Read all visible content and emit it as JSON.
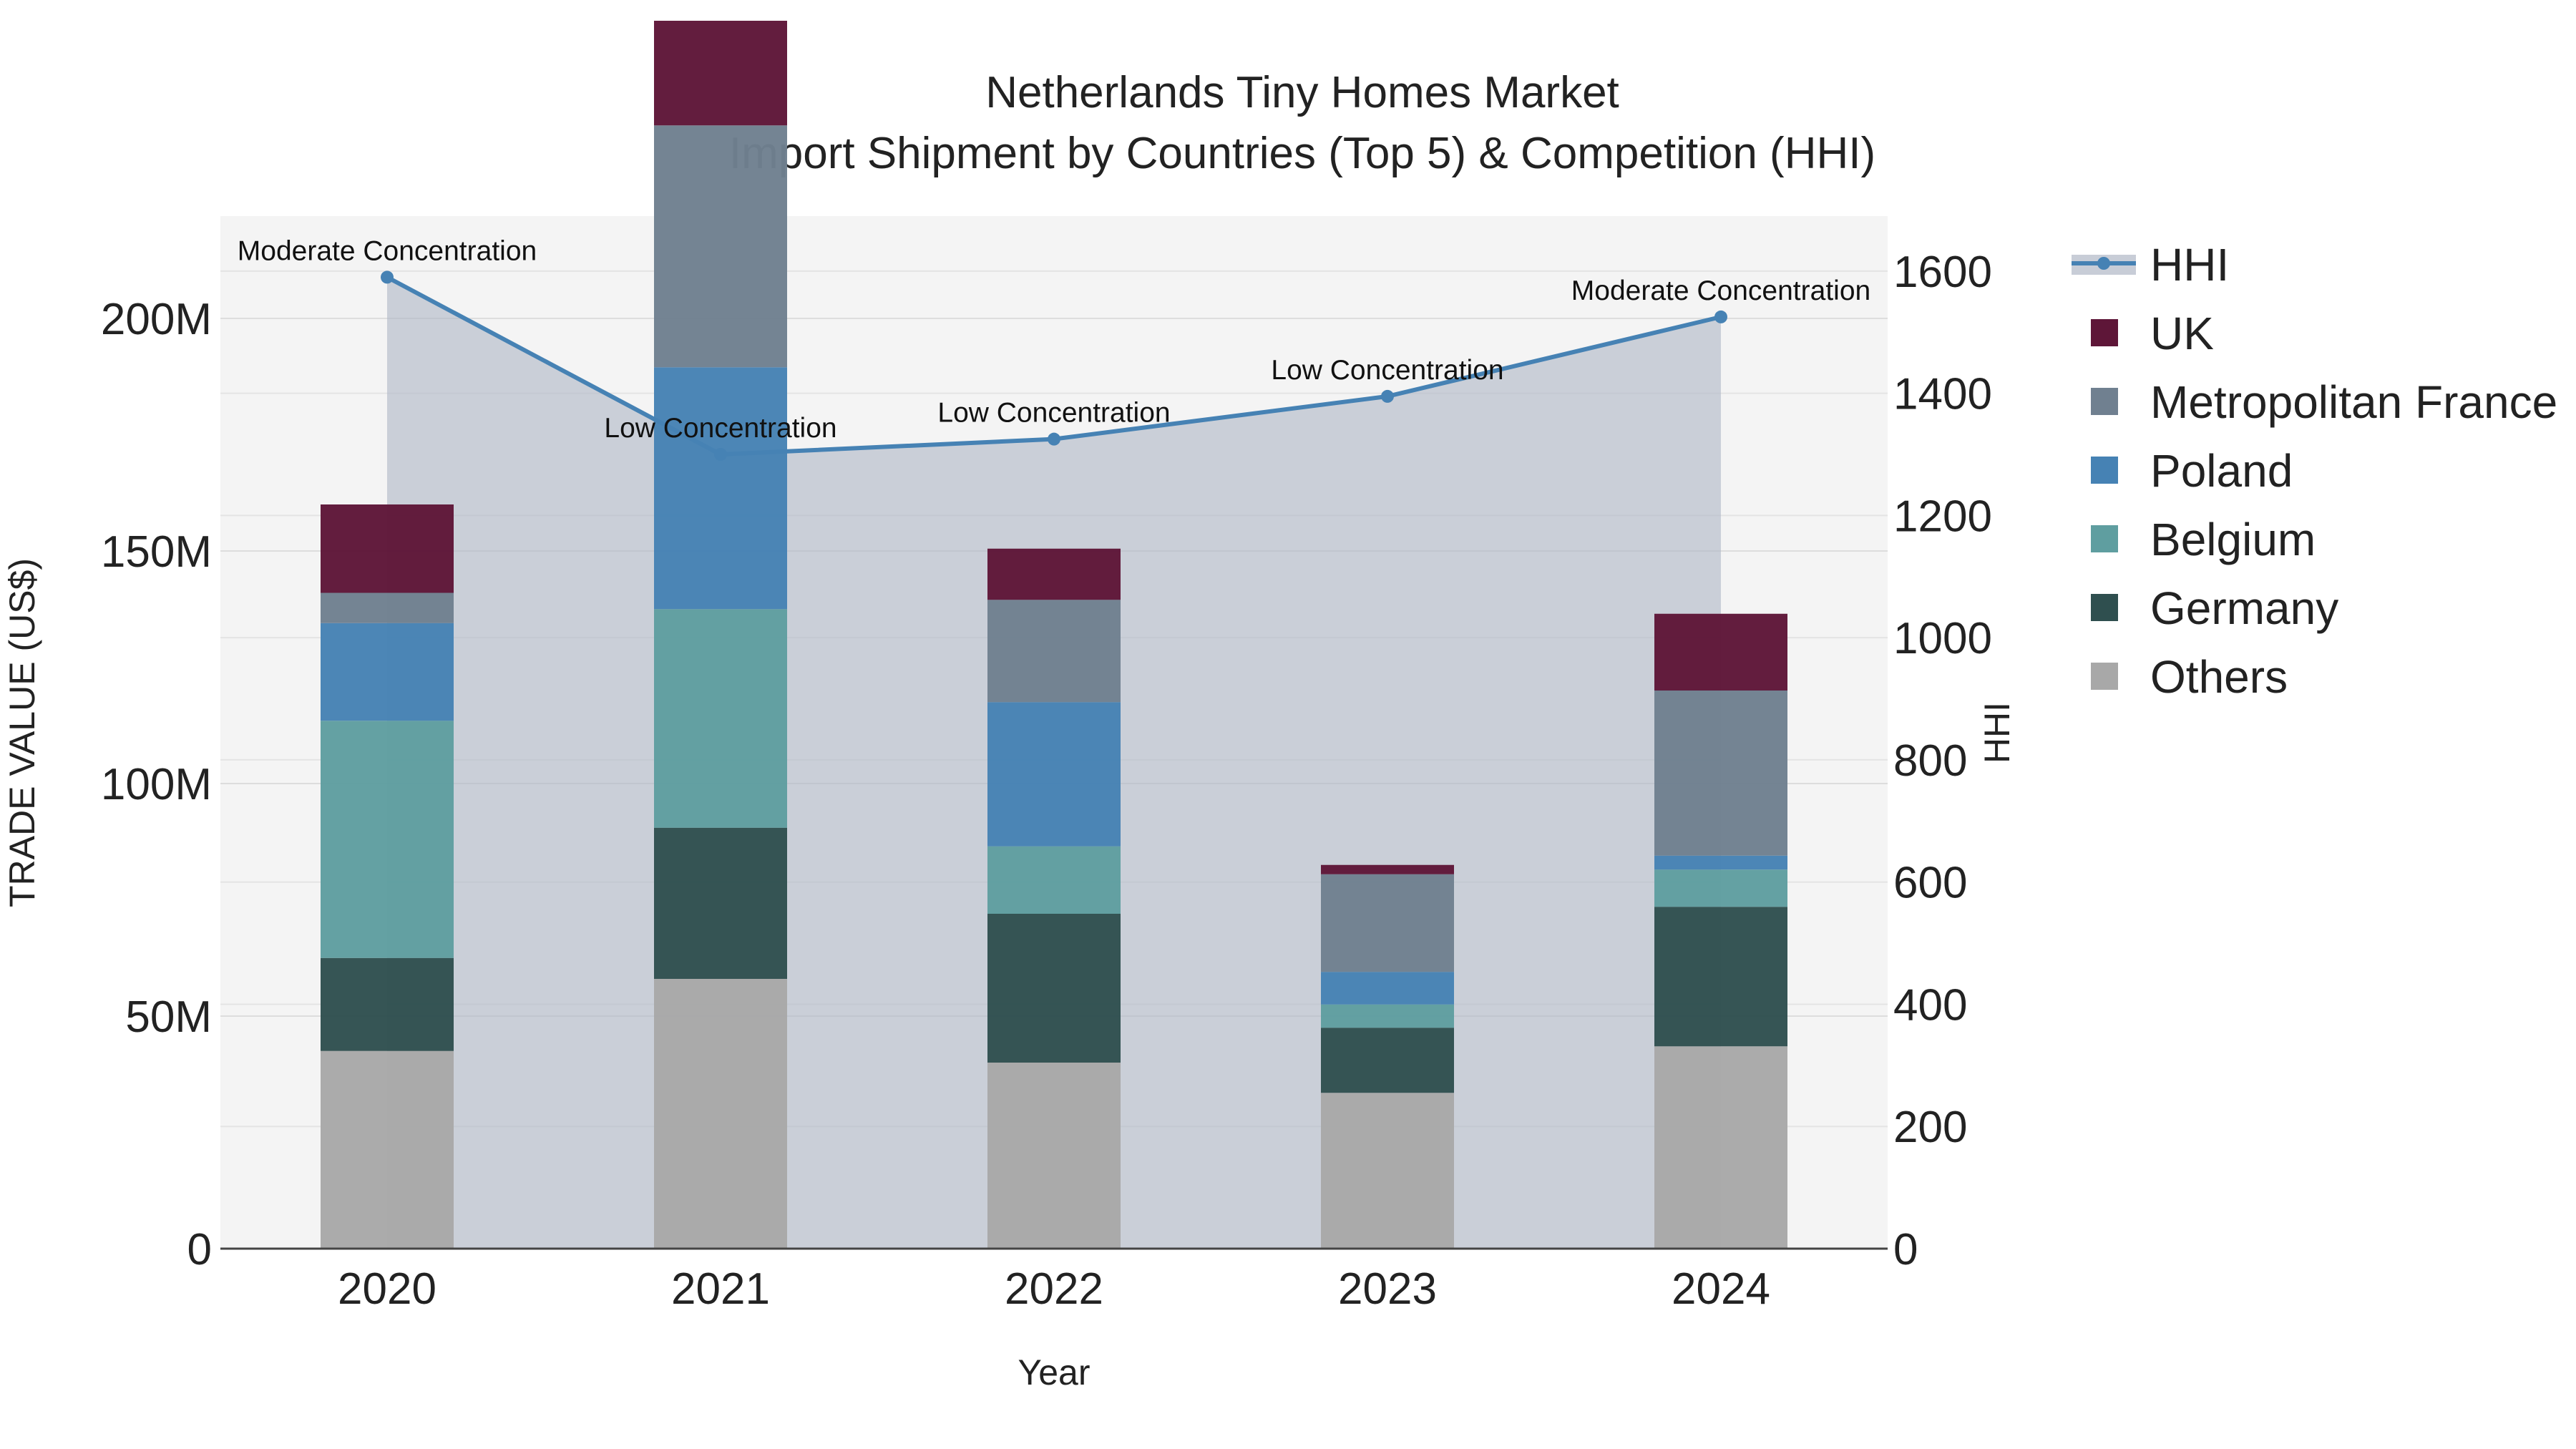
{
  "chart_data": {
    "type": "bar",
    "stacked": true,
    "title": "Netherlands Tiny Homes Market",
    "subtitle": "Import Shipment by Countries (Top 5) & Competition (HHI)",
    "xlabel": "Year",
    "ylabel": "TRADE VALUE (US$)",
    "y2label": "HHI",
    "categories": [
      "2020",
      "2021",
      "2022",
      "2023",
      "2024"
    ],
    "ylim": [
      0,
      222000000
    ],
    "y2lim": [
      0,
      1690
    ],
    "y_ticks": [
      {
        "value": 0,
        "label": "0"
      },
      {
        "value": 50000000,
        "label": "50M"
      },
      {
        "value": 100000000,
        "label": "100M"
      },
      {
        "value": 150000000,
        "label": "150M"
      },
      {
        "value": 200000000,
        "label": "200M"
      }
    ],
    "y2_ticks": [
      {
        "value": 0,
        "label": "0"
      },
      {
        "value": 200,
        "label": "200"
      },
      {
        "value": 400,
        "label": "400"
      },
      {
        "value": 600,
        "label": "600"
      },
      {
        "value": 800,
        "label": "800"
      },
      {
        "value": 1000,
        "label": "1000"
      },
      {
        "value": 1200,
        "label": "1200"
      },
      {
        "value": 1400,
        "label": "1400"
      },
      {
        "value": 1600,
        "label": "1600"
      }
    ],
    "series": [
      {
        "name": "Others",
        "color": "#A8A8A8",
        "values": [
          42500000,
          58000000,
          40000000,
          33500000,
          43500000
        ]
      },
      {
        "name": "Germany",
        "color": "#2F4F4F",
        "values": [
          20000000,
          32500000,
          32000000,
          14000000,
          30000000
        ]
      },
      {
        "name": "Belgium",
        "color": "#5F9EA0",
        "values": [
          51000000,
          47000000,
          14500000,
          5000000,
          8000000
        ]
      },
      {
        "name": "Poland",
        "color": "#4682B4",
        "values": [
          21000000,
          52000000,
          31000000,
          7000000,
          3000000
        ]
      },
      {
        "name": "Metropolitan France",
        "color": "#708090",
        "values": [
          6500000,
          52000000,
          22000000,
          21000000,
          35500000
        ]
      },
      {
        "name": "UK",
        "color": "#5E1638",
        "values": [
          19000000,
          22500000,
          11000000,
          2000000,
          16500000
        ]
      }
    ],
    "hhi": {
      "name": "HHI",
      "color": "#4682B4",
      "values": [
        1590,
        1300,
        1325,
        1395,
        1525
      ],
      "labels": [
        "Moderate Concentration",
        "Low Concentration",
        "Low Concentration",
        "Low Concentration",
        "Moderate Concentration"
      ]
    },
    "legend": [
      "HHI",
      "UK",
      "Metropolitan France",
      "Poland",
      "Belgium",
      "Germany",
      "Others"
    ],
    "legend_position": "right"
  }
}
